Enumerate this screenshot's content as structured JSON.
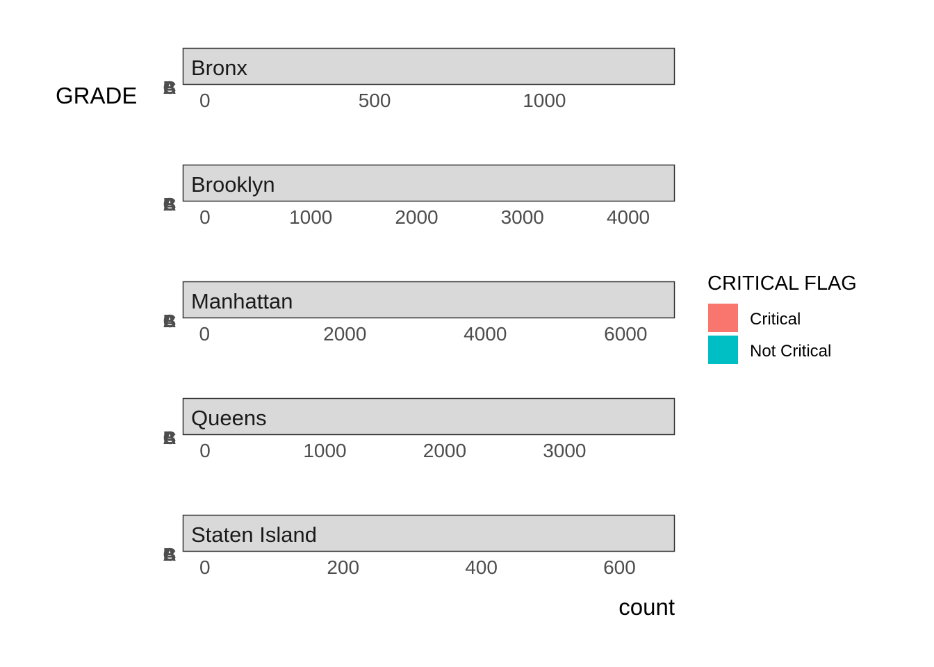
{
  "chart_data": {
    "type": "bar",
    "orientation": "horizontal",
    "ylabel": "GRADE",
    "xlabel": "count",
    "y_categories": [
      "A",
      "B",
      "C"
    ],
    "facet_order": [
      "Bronx",
      "Brooklyn",
      "Manhattan",
      "Queens",
      "Staten Island"
    ],
    "legend": {
      "title": "CRITICAL FLAG",
      "placement": "right",
      "items": [
        {
          "label": "Critical",
          "color": "#F8766D"
        },
        {
          "label": "Not Critical",
          "color": "#00BFC4"
        }
      ]
    },
    "grid": false,
    "panels": [
      {
        "facet": "Bronx",
        "xlim": [
          -65,
          1384
        ],
        "ticks": [
          0,
          500,
          1000
        ],
        "tick_labels": [
          "0",
          "500",
          "1000"
        ]
      },
      {
        "facet": "Brooklyn",
        "xlim": [
          -210,
          4440
        ],
        "ticks": [
          0,
          1000,
          2000,
          3000,
          4000
        ],
        "tick_labels": [
          "0",
          "1000",
          "2000",
          "3000",
          "4000"
        ]
      },
      {
        "facet": "Manhattan",
        "xlim": [
          -310,
          6700
        ],
        "ticks": [
          0,
          2000,
          4000,
          6000
        ],
        "tick_labels": [
          "0",
          "2000",
          "4000",
          "6000"
        ]
      },
      {
        "facet": "Queens",
        "xlim": [
          -186,
          3920
        ],
        "ticks": [
          0,
          1000,
          2000,
          3000
        ],
        "tick_labels": [
          "0",
          "1000",
          "2000",
          "3000"
        ]
      },
      {
        "facet": "Staten Island",
        "xlim": [
          -32,
          680
        ],
        "ticks": [
          0,
          200,
          400,
          600
        ],
        "tick_labels": [
          "0",
          "200",
          "400",
          "600"
        ]
      }
    ]
  }
}
